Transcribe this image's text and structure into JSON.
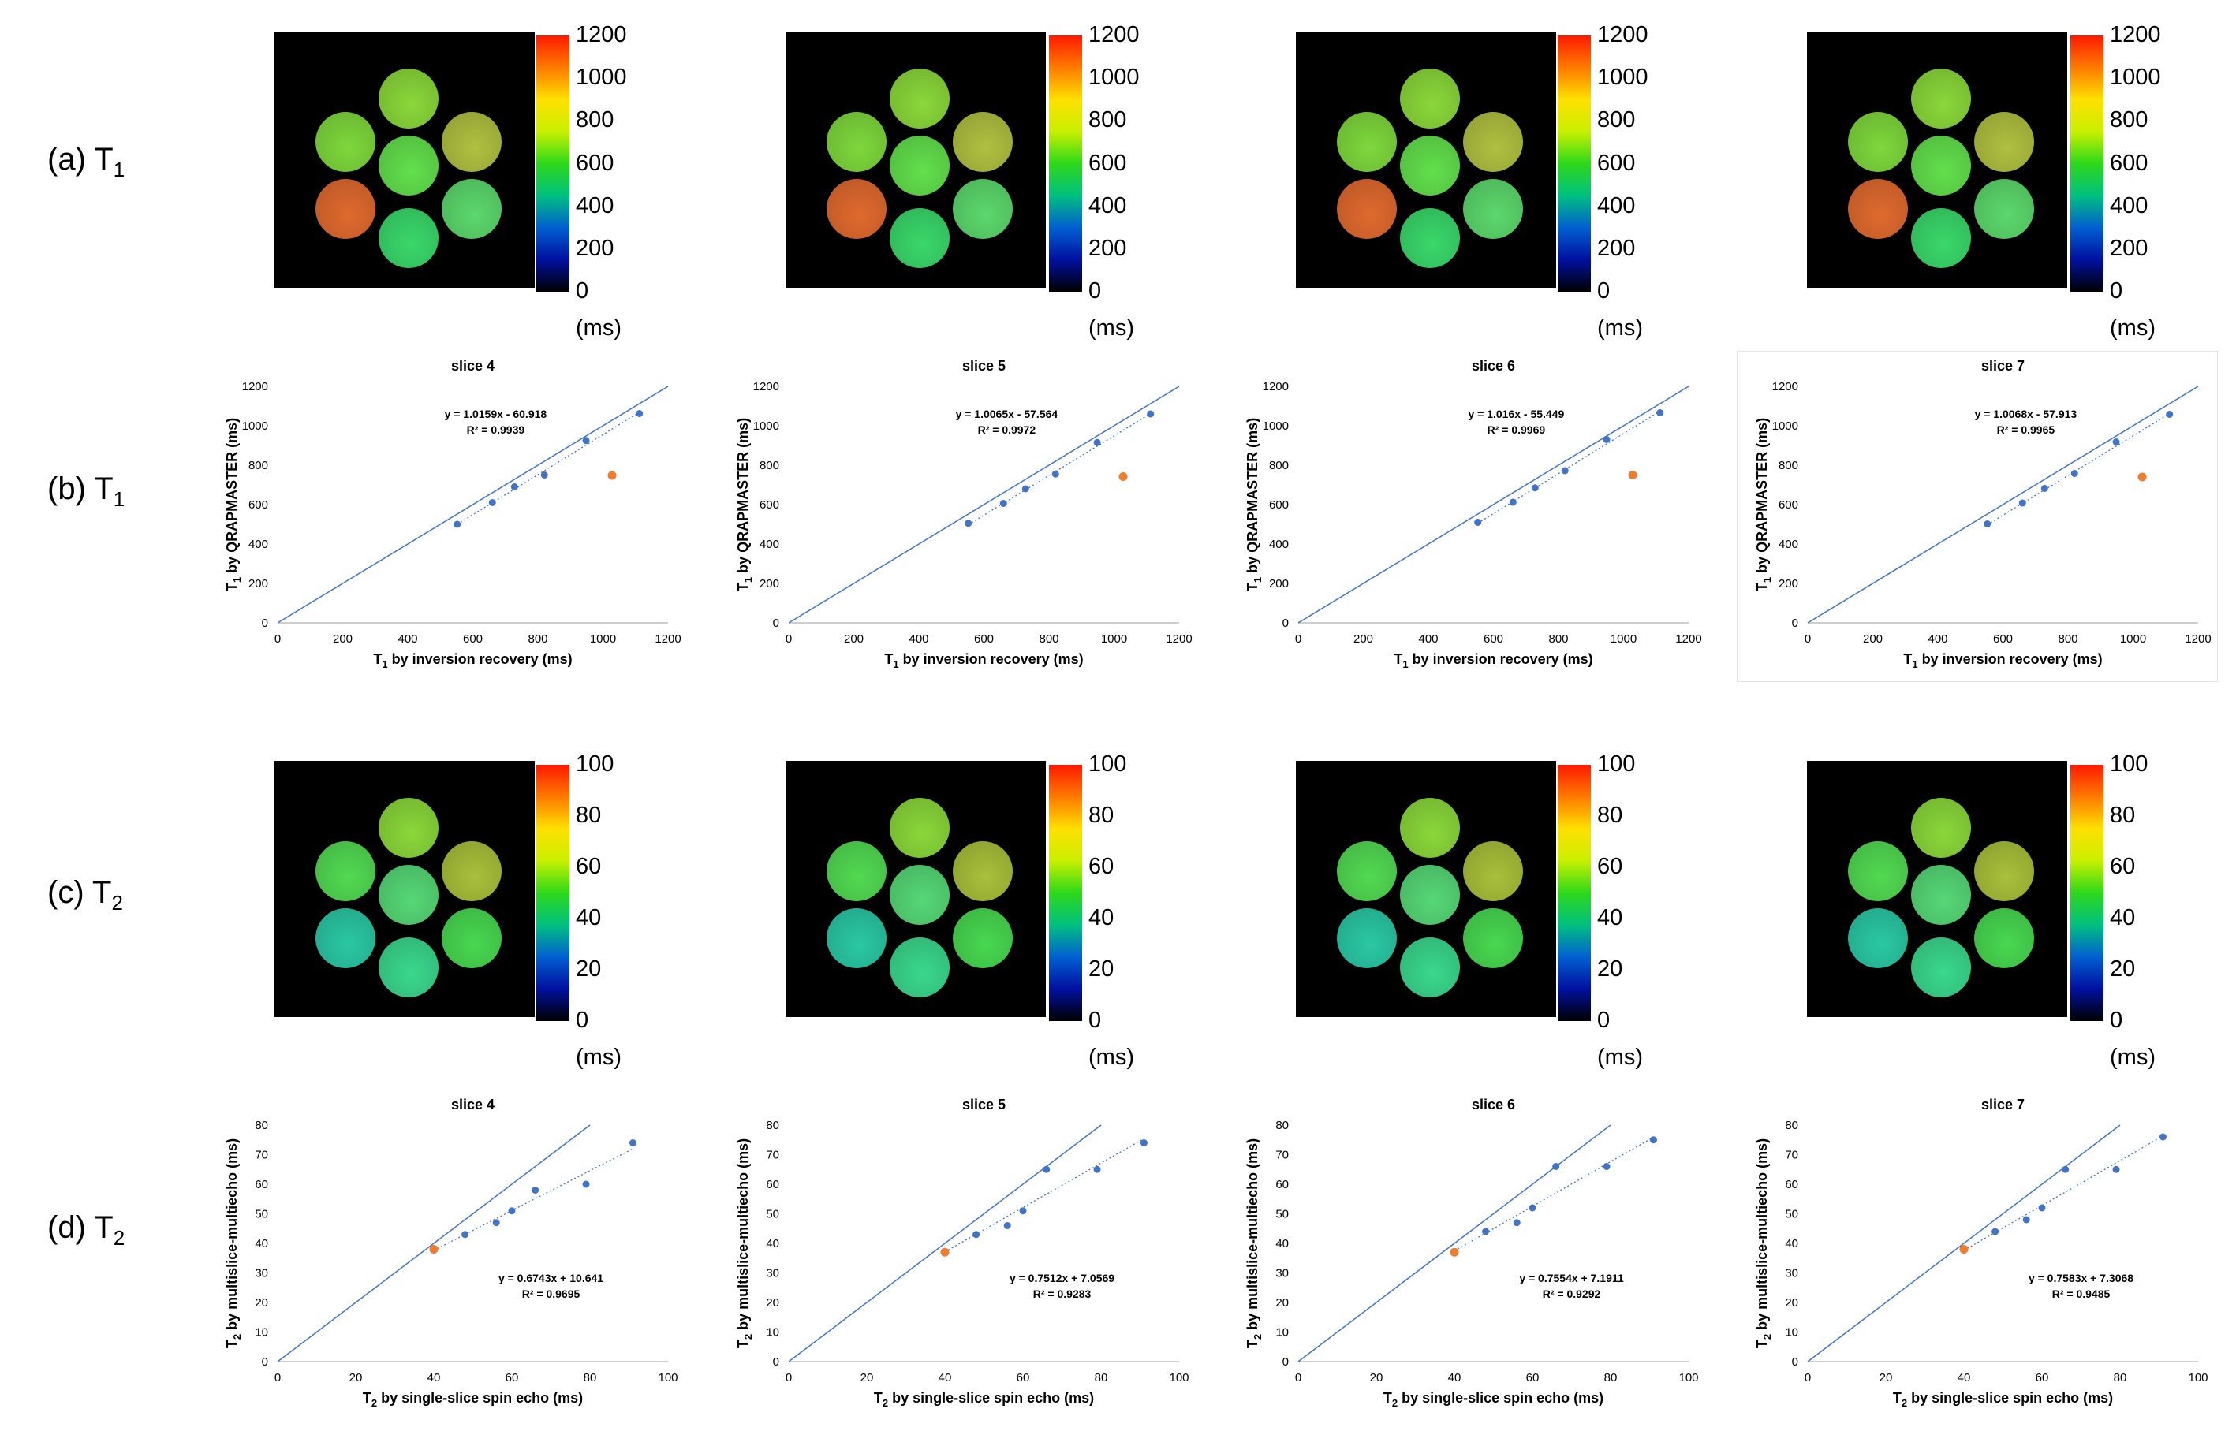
{
  "row_labels": [
    {
      "letter": "(a) T",
      "sub": "1"
    },
    {
      "letter": "(b) T",
      "sub": "1"
    },
    {
      "letter": "(c) T",
      "sub": "2"
    },
    {
      "letter": "(d) T",
      "sub": "2"
    }
  ],
  "colorbars": {
    "t1": {
      "ticks": [
        "1200",
        "1000",
        "800",
        "600",
        "400",
        "200",
        "0"
      ],
      "unit": "(ms)",
      "range": [
        0,
        1200
      ]
    },
    "t2": {
      "ticks": [
        "100",
        "80",
        "60",
        "40",
        "20",
        "0"
      ],
      "unit": "(ms)",
      "range": [
        0,
        100
      ]
    },
    "colors": [
      "#ff1a00",
      "#ff7a00",
      "#ffe000",
      "#c8f000",
      "#2ed81a",
      "#00c080",
      "#0060d0",
      "#0010a0",
      "#000000"
    ]
  },
  "phantom_colors": {
    "t1": [
      "#7ed83c",
      "#b0c040",
      "#62e04c",
      "#e06a2e",
      "#5cd86c",
      "#3ad86a",
      "#8ad83a"
    ],
    "t2": [
      "#52da52",
      "#a8c03a",
      "#56d876",
      "#2ac8a4",
      "#48d850",
      "#3ad88c",
      "#8ad83a"
    ]
  },
  "chart_data": [
    {
      "type": "scatter",
      "title": "slice 4",
      "xlabel_pre": "T",
      "xlabel_sub": "1",
      "xlabel_post": " by inversion recovery (ms)",
      "ylabel_pre": "T",
      "ylabel_sub": "1",
      "ylabel_post": " by QRAPMASTER (ms)",
      "xlim": [
        0,
        1200
      ],
      "ylim": [
        0,
        1200
      ],
      "xticks": [
        0,
        200,
        400,
        600,
        800,
        1000,
        1200
      ],
      "yticks": [
        0,
        200,
        400,
        600,
        800,
        1000,
        1200
      ],
      "x": [
        552,
        660,
        728,
        820,
        948,
        1112
      ],
      "y": [
        500,
        610,
        690,
        750,
        925,
        1062
      ],
      "outlier": {
        "x": 1028,
        "y": 748
      },
      "fit": {
        "slope": 1.0159,
        "intercept": -60.918
      },
      "eq": "y = 1.0159x - 60.918",
      "r2": "R² = 0.9939",
      "eq_pos": [
        670,
        1040
      ],
      "framed": false
    },
    {
      "type": "scatter",
      "title": "slice 5",
      "xlabel_pre": "T",
      "xlabel_sub": "1",
      "xlabel_post": " by inversion recovery (ms)",
      "ylabel_pre": "T",
      "ylabel_sub": "1",
      "ylabel_post": " by QRAPMASTER (ms)",
      "xlim": [
        0,
        1200
      ],
      "ylim": [
        0,
        1200
      ],
      "xticks": [
        0,
        200,
        400,
        600,
        800,
        1000,
        1200
      ],
      "yticks": [
        0,
        200,
        400,
        600,
        800,
        1000,
        1200
      ],
      "x": [
        552,
        660,
        728,
        820,
        948,
        1112
      ],
      "y": [
        505,
        606,
        680,
        755,
        915,
        1060
      ],
      "outlier": {
        "x": 1028,
        "y": 742
      },
      "fit": {
        "slope": 1.0065,
        "intercept": -57.564
      },
      "eq": "y = 1.0065x - 57.564",
      "r2": "R² = 0.9972",
      "eq_pos": [
        670,
        1040
      ],
      "framed": false
    },
    {
      "type": "scatter",
      "title": "slice 6",
      "xlabel_pre": "T",
      "xlabel_sub": "1",
      "xlabel_post": " by inversion recovery (ms)",
      "ylabel_pre": "T",
      "ylabel_sub": "1",
      "ylabel_post": " by QRAPMASTER (ms)",
      "xlim": [
        0,
        1200
      ],
      "ylim": [
        0,
        1200
      ],
      "xticks": [
        0,
        200,
        400,
        600,
        800,
        1000,
        1200
      ],
      "yticks": [
        0,
        200,
        400,
        600,
        800,
        1000,
        1200
      ],
      "x": [
        552,
        660,
        728,
        820,
        948,
        1112
      ],
      "y": [
        510,
        612,
        685,
        772,
        930,
        1066
      ],
      "outlier": {
        "x": 1028,
        "y": 750
      },
      "fit": {
        "slope": 1.016,
        "intercept": -55.449
      },
      "eq": "y = 1.016x - 55.449",
      "r2": "R² = 0.9969",
      "eq_pos": [
        670,
        1040
      ],
      "framed": false
    },
    {
      "type": "scatter",
      "title": "slice 7",
      "xlabel_pre": "T",
      "xlabel_sub": "1",
      "xlabel_post": " by inversion recovery (ms)",
      "ylabel_pre": "T",
      "ylabel_sub": "1",
      "ylabel_post": " by QRAPMASTER (ms)",
      "xlim": [
        0,
        1200
      ],
      "ylim": [
        0,
        1200
      ],
      "xticks": [
        0,
        200,
        400,
        600,
        800,
        1000,
        1200
      ],
      "yticks": [
        0,
        200,
        400,
        600,
        800,
        1000,
        1200
      ],
      "x": [
        552,
        660,
        728,
        820,
        948,
        1112
      ],
      "y": [
        502,
        608,
        682,
        758,
        918,
        1058
      ],
      "outlier": {
        "x": 1028,
        "y": 740
      },
      "fit": {
        "slope": 1.0068,
        "intercept": -57.913
      },
      "eq": "y = 1.0068x - 57.913",
      "r2": "R² = 0.9965",
      "eq_pos": [
        670,
        1040
      ],
      "framed": true
    },
    {
      "type": "scatter",
      "title": "slice 4",
      "xlabel_pre": "T",
      "xlabel_sub": "2",
      "xlabel_post": " by single-slice spin echo (ms)",
      "ylabel_pre": "T",
      "ylabel_sub": "2",
      "ylabel_post": " by multislice-multiecho (ms)",
      "xlim": [
        0,
        100
      ],
      "ylim": [
        0,
        80
      ],
      "xticks": [
        0,
        20,
        40,
        60,
        80,
        100
      ],
      "yticks": [
        0,
        10,
        20,
        30,
        40,
        50,
        60,
        70,
        80
      ],
      "x": [
        48,
        56,
        60,
        66,
        79,
        91
      ],
      "y": [
        43,
        47,
        51,
        58,
        60,
        74
      ],
      "outlier": {
        "x": 40,
        "y": 38
      },
      "fit": {
        "slope": 0.6743,
        "intercept": 10.641
      },
      "eq": "y = 0.6743x + 10.641",
      "r2": "R² = 0.9695",
      "eq_pos": [
        70,
        27
      ],
      "framed": false
    },
    {
      "type": "scatter",
      "title": "slice 5",
      "xlabel_pre": "T",
      "xlabel_sub": "2",
      "xlabel_post": " by single-slice spin echo (ms)",
      "ylabel_pre": "T",
      "ylabel_sub": "2",
      "ylabel_post": " by multislice-multiecho (ms)",
      "xlim": [
        0,
        100
      ],
      "ylim": [
        0,
        80
      ],
      "xticks": [
        0,
        20,
        40,
        60,
        80,
        100
      ],
      "yticks": [
        0,
        10,
        20,
        30,
        40,
        50,
        60,
        70,
        80
      ],
      "x": [
        48,
        56,
        60,
        66,
        79,
        91
      ],
      "y": [
        43,
        46,
        51,
        65,
        65,
        74
      ],
      "outlier": {
        "x": 40,
        "y": 37
      },
      "fit": {
        "slope": 0.7512,
        "intercept": 7.0569
      },
      "eq": "y = 0.7512x + 7.0569",
      "r2": "R² = 0.9283",
      "eq_pos": [
        70,
        27
      ],
      "framed": false
    },
    {
      "type": "scatter",
      "title": "slice 6",
      "xlabel_pre": "T",
      "xlabel_sub": "2",
      "xlabel_post": " by single-slice spin echo (ms)",
      "ylabel_pre": "T",
      "ylabel_sub": "2",
      "ylabel_post": " by multislice-multiecho (ms)",
      "xlim": [
        0,
        100
      ],
      "ylim": [
        0,
        80
      ],
      "xticks": [
        0,
        20,
        40,
        60,
        80,
        100
      ],
      "yticks": [
        0,
        10,
        20,
        30,
        40,
        50,
        60,
        70,
        80
      ],
      "x": [
        48,
        56,
        60,
        66,
        79,
        91
      ],
      "y": [
        44,
        47,
        52,
        66,
        66,
        75
      ],
      "outlier": {
        "x": 40,
        "y": 37
      },
      "fit": {
        "slope": 0.7554,
        "intercept": 7.1911
      },
      "eq": "y = 0.7554x + 7.1911",
      "r2": "R² = 0.9292",
      "eq_pos": [
        70,
        27
      ],
      "framed": false
    },
    {
      "type": "scatter",
      "title": "slice 7",
      "xlabel_pre": "T",
      "xlabel_sub": "2",
      "xlabel_post": " by single-slice spin echo (ms)",
      "ylabel_pre": "T",
      "ylabel_sub": "2",
      "ylabel_post": " by multislice-multiecho (ms)",
      "xlim": [
        0,
        100
      ],
      "ylim": [
        0,
        80
      ],
      "xticks": [
        0,
        20,
        40,
        60,
        80,
        100
      ],
      "yticks": [
        0,
        10,
        20,
        30,
        40,
        50,
        60,
        70,
        80
      ],
      "x": [
        48,
        56,
        60,
        66,
        79,
        91
      ],
      "y": [
        44,
        48,
        52,
        65,
        65,
        76
      ],
      "outlier": {
        "x": 40,
        "y": 38
      },
      "fit": {
        "slope": 0.7583,
        "intercept": 7.3068
      },
      "eq": "y = 0.7583x + 7.3068",
      "r2": "R² = 0.9485",
      "eq_pos": [
        70,
        27
      ],
      "framed": false
    }
  ],
  "colors": {
    "series": "#4472c4",
    "outlier": "#ed7d31",
    "axis": "#bfbfbf",
    "text": "#000000"
  }
}
